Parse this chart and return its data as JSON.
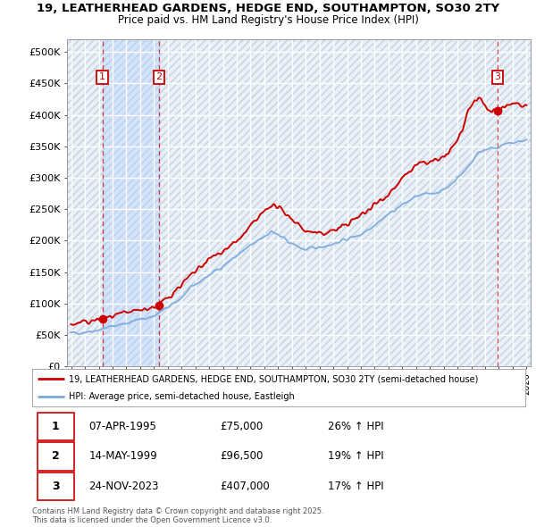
{
  "title_line1": "19, LEATHERHEAD GARDENS, HEDGE END, SOUTHAMPTON, SO30 2TY",
  "title_line2": "Price paid vs. HM Land Registry's House Price Index (HPI)",
  "ylabel_ticks": [
    "£0",
    "£50K",
    "£100K",
    "£150K",
    "£200K",
    "£250K",
    "£300K",
    "£350K",
    "£400K",
    "£450K",
    "£500K"
  ],
  "ytick_vals": [
    0,
    50000,
    100000,
    150000,
    200000,
    250000,
    300000,
    350000,
    400000,
    450000,
    500000
  ],
  "ylim": [
    0,
    520000
  ],
  "xlim_start": 1992.7,
  "xlim_end": 2026.3,
  "sale_dates": [
    1995.27,
    1999.37,
    2023.9
  ],
  "sale_prices": [
    75000,
    96500,
    407000
  ],
  "sale_labels": [
    "1",
    "2",
    "3"
  ],
  "legend_line1": "19, LEATHERHEAD GARDENS, HEDGE END, SOUTHAMPTON, SO30 2TY (semi-detached house)",
  "legend_line2": "HPI: Average price, semi-detached house, Eastleigh",
  "footer_line1": "Contains HM Land Registry data © Crown copyright and database right 2025.",
  "footer_line2": "This data is licensed under the Open Government Licence v3.0.",
  "table_rows": [
    [
      "1",
      "07-APR-1995",
      "£75,000",
      "26% ↑ HPI"
    ],
    [
      "2",
      "14-MAY-1999",
      "£96,500",
      "19% ↑ HPI"
    ],
    [
      "3",
      "24-NOV-2023",
      "£407,000",
      "17% ↑ HPI"
    ]
  ],
  "red_color": "#cc0000",
  "blue_color": "#7aaadd",
  "shade_color": "#ddeeff",
  "bg_color": "#e8f0f8",
  "hatch_bg": "#d0d8e8"
}
